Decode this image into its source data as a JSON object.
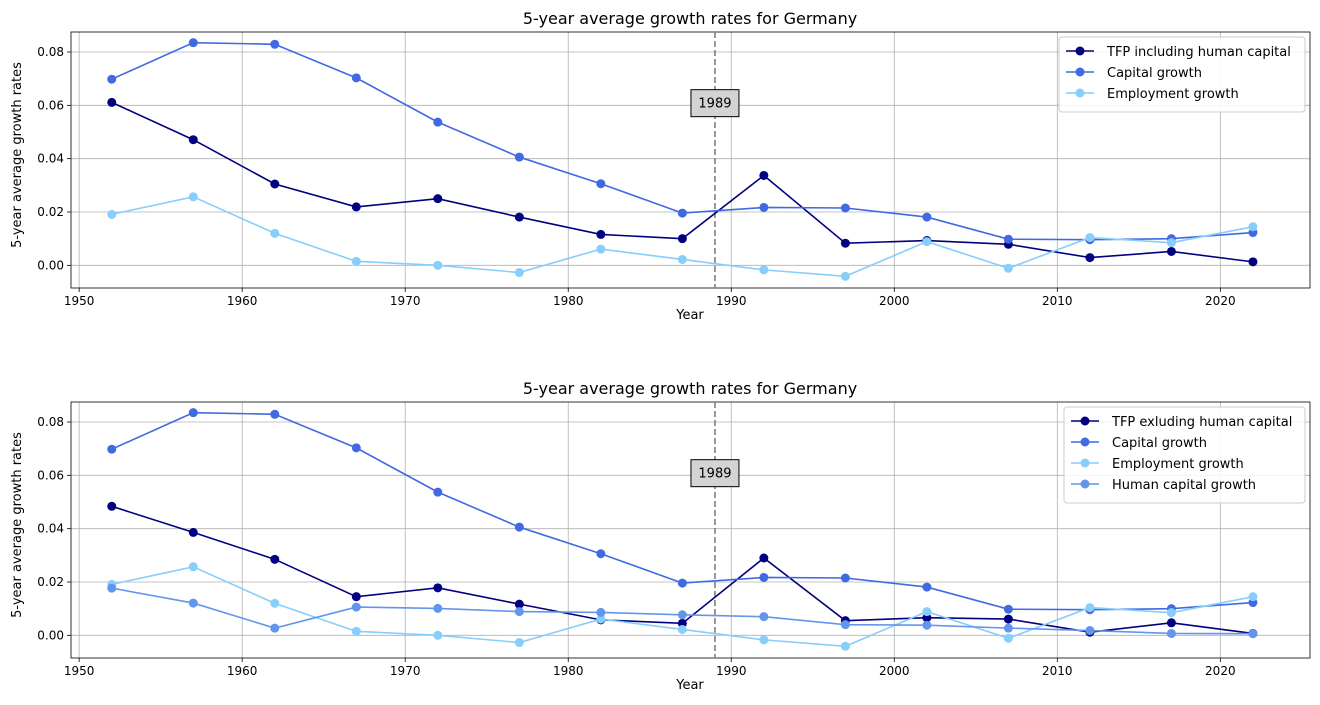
{
  "chart_data": [
    {
      "type": "line",
      "title": "5-year average growth rates for Germany",
      "xlabel": "Year",
      "ylabel": "5-year average growth rates",
      "xlim": [
        1949.5,
        2025.5
      ],
      "ylim": [
        -0.0085,
        0.0875
      ],
      "xticks": [
        1950,
        1960,
        1970,
        1980,
        1990,
        2000,
        2010,
        2020
      ],
      "xtick_labels": [
        "1950",
        "1960",
        "1970",
        "1980",
        "1990",
        "2000",
        "2010",
        "2020"
      ],
      "yticks": [
        0.0,
        0.02,
        0.04,
        0.06,
        0.08
      ],
      "ytick_labels": [
        "0.00",
        "0.02",
        "0.04",
        "0.06",
        "0.08"
      ],
      "grid": true,
      "legend_position": "top-right",
      "x": [
        1952,
        1957,
        1962,
        1967,
        1972,
        1977,
        1982,
        1987,
        1992,
        1997,
        2002,
        2007,
        2012,
        2017,
        2022
      ],
      "series": [
        {
          "name": "TFP including human capital",
          "color": "#000080",
          "values": [
            0.0611,
            0.0471,
            0.0305,
            0.0219,
            0.025,
            0.0181,
            0.0116,
            0.01,
            0.0337,
            0.0083,
            0.0093,
            0.0079,
            0.0029,
            0.0052,
            0.0013
          ]
        },
        {
          "name": "Capital growth",
          "color": "#4169E1",
          "values": [
            0.0698,
            0.0835,
            0.0829,
            0.0703,
            0.0537,
            0.0406,
            0.0306,
            0.0196,
            0.0217,
            0.0215,
            0.0181,
            0.0098,
            0.0096,
            0.01,
            0.0123
          ]
        },
        {
          "name": "Employment growth",
          "color": "#87CEFA",
          "values": [
            0.0191,
            0.0257,
            0.012,
            0.0015,
            0.0,
            -0.0027,
            0.0061,
            0.0022,
            -0.0017,
            -0.0041,
            0.0089,
            -0.0011,
            0.0104,
            0.0085,
            0.0145
          ]
        }
      ],
      "annotations": [
        {
          "x": 1989,
          "style": "dashed",
          "color": "#808080",
          "label": "1989",
          "label_y": 0.061
        }
      ]
    },
    {
      "type": "line",
      "title": "5-year average growth rates for Germany",
      "xlabel": "Year",
      "ylabel": "5-year average growth rates",
      "xlim": [
        1949.5,
        2025.5
      ],
      "ylim": [
        -0.0085,
        0.0875
      ],
      "xticks": [
        1950,
        1960,
        1970,
        1980,
        1990,
        2000,
        2010,
        2020
      ],
      "xtick_labels": [
        "1950",
        "1960",
        "1970",
        "1980",
        "1990",
        "2000",
        "2010",
        "2020"
      ],
      "yticks": [
        0.0,
        0.02,
        0.04,
        0.06,
        0.08
      ],
      "ytick_labels": [
        "0.00",
        "0.02",
        "0.04",
        "0.06",
        "0.08"
      ],
      "grid": true,
      "legend_position": "top-right",
      "x": [
        1952,
        1957,
        1962,
        1967,
        1972,
        1977,
        1982,
        1987,
        1992,
        1997,
        2002,
        2007,
        2012,
        2017,
        2022
      ],
      "series": [
        {
          "name": "TFP exluding human capital",
          "color": "#000080",
          "values": [
            0.0484,
            0.0386,
            0.0285,
            0.0145,
            0.0178,
            0.0117,
            0.0058,
            0.0045,
            0.029,
            0.0055,
            0.0066,
            0.0061,
            0.0012,
            0.0047,
            0.0007
          ]
        },
        {
          "name": "Capital growth",
          "color": "#4169E1",
          "values": [
            0.0698,
            0.0835,
            0.0829,
            0.0703,
            0.0537,
            0.0406,
            0.0306,
            0.0196,
            0.0217,
            0.0215,
            0.0181,
            0.0098,
            0.0096,
            0.01,
            0.0123
          ]
        },
        {
          "name": "Employment growth",
          "color": "#87CEFA",
          "values": [
            0.0191,
            0.0257,
            0.012,
            0.0015,
            0.0,
            -0.0027,
            0.0061,
            0.0022,
            -0.0017,
            -0.0041,
            0.0089,
            -0.0011,
            0.0104,
            0.0085,
            0.0145
          ]
        },
        {
          "name": "Human capital growth",
          "color": "#6495ED",
          "values": [
            0.0177,
            0.0121,
            0.0027,
            0.0106,
            0.0101,
            0.0089,
            0.0086,
            0.0077,
            0.007,
            0.004,
            0.0038,
            0.0027,
            0.0018,
            0.0007,
            0.0006
          ]
        }
      ],
      "annotations": [
        {
          "x": 1989,
          "style": "dashed",
          "color": "#808080",
          "label": "1989",
          "label_y": 0.061
        }
      ]
    }
  ]
}
